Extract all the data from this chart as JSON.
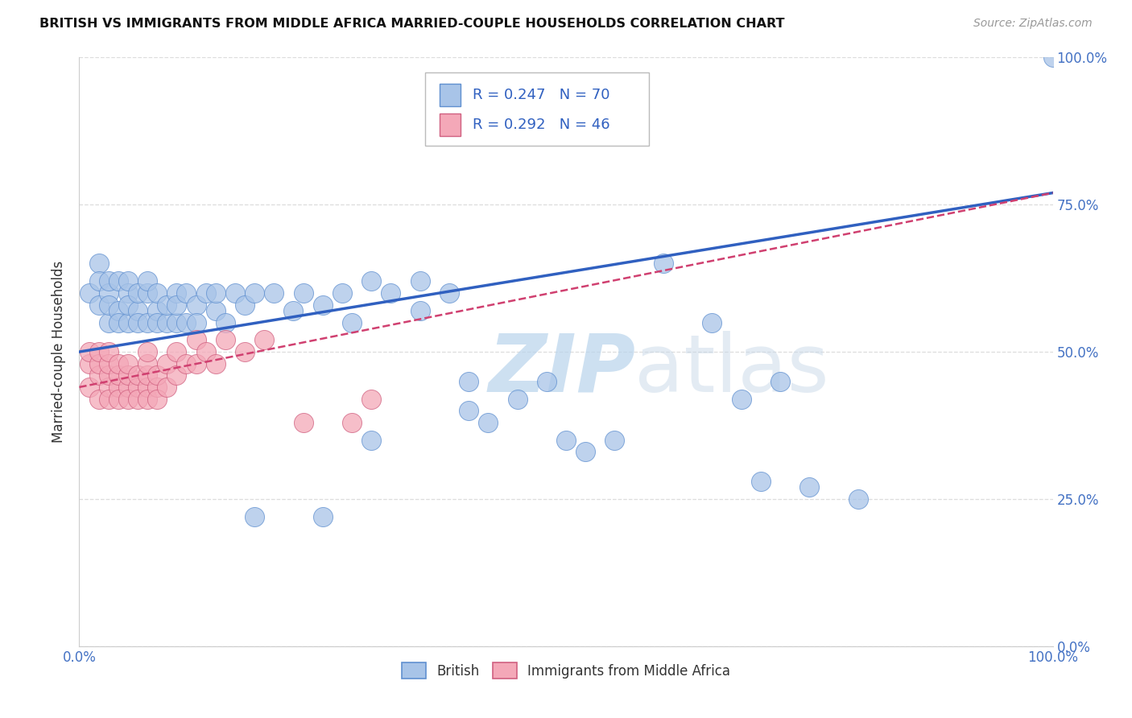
{
  "title": "BRITISH VS IMMIGRANTS FROM MIDDLE AFRICA MARRIED-COUPLE HOUSEHOLDS CORRELATION CHART",
  "source": "Source: ZipAtlas.com",
  "ylabel": "Married-couple Households",
  "xlim": [
    0,
    1
  ],
  "ylim": [
    0,
    1
  ],
  "ytick_labels": [
    "0.0%",
    "25.0%",
    "50.0%",
    "75.0%",
    "100.0%"
  ],
  "ytick_values": [
    0.0,
    0.25,
    0.5,
    0.75,
    1.0
  ],
  "blue_R": "0.247",
  "blue_N": "70",
  "pink_R": "0.292",
  "pink_N": "46",
  "blue_color": "#A8C4E8",
  "pink_color": "#F4A8B8",
  "blue_edge_color": "#6090D0",
  "pink_edge_color": "#D06080",
  "blue_line_color": "#3060C0",
  "pink_line_color": "#D04070",
  "grid_color": "#DDDDDD",
  "title_color": "#111111",
  "source_color": "#999999",
  "watermark_zip": "ZIP",
  "watermark_atlas": "atlas",
  "blue_scatter_x": [
    0.01,
    0.02,
    0.02,
    0.02,
    0.03,
    0.03,
    0.03,
    0.03,
    0.04,
    0.04,
    0.04,
    0.05,
    0.05,
    0.05,
    0.05,
    0.06,
    0.06,
    0.06,
    0.07,
    0.07,
    0.07,
    0.08,
    0.08,
    0.08,
    0.09,
    0.09,
    0.1,
    0.1,
    0.1,
    0.11,
    0.11,
    0.12,
    0.12,
    0.13,
    0.14,
    0.14,
    0.15,
    0.16,
    0.17,
    0.18,
    0.2,
    0.22,
    0.23,
    0.25,
    0.27,
    0.28,
    0.3,
    0.32,
    0.35,
    0.35,
    0.38,
    0.4,
    0.4,
    0.42,
    0.45,
    0.48,
    0.5,
    0.52,
    0.55,
    0.6,
    0.65,
    0.68,
    0.7,
    0.72,
    0.75,
    0.8,
    1.0,
    0.3,
    0.18,
    0.25
  ],
  "blue_scatter_y": [
    0.6,
    0.65,
    0.58,
    0.62,
    0.6,
    0.55,
    0.62,
    0.58,
    0.57,
    0.62,
    0.55,
    0.6,
    0.55,
    0.58,
    0.62,
    0.57,
    0.6,
    0.55,
    0.6,
    0.55,
    0.62,
    0.57,
    0.55,
    0.6,
    0.55,
    0.58,
    0.6,
    0.55,
    0.58,
    0.6,
    0.55,
    0.58,
    0.55,
    0.6,
    0.57,
    0.6,
    0.55,
    0.6,
    0.58,
    0.6,
    0.6,
    0.57,
    0.6,
    0.58,
    0.6,
    0.55,
    0.62,
    0.6,
    0.62,
    0.57,
    0.6,
    0.45,
    0.4,
    0.38,
    0.42,
    0.45,
    0.35,
    0.33,
    0.35,
    0.65,
    0.55,
    0.42,
    0.28,
    0.45,
    0.27,
    0.25,
    1.0,
    0.35,
    0.22,
    0.22
  ],
  "pink_scatter_x": [
    0.01,
    0.01,
    0.01,
    0.02,
    0.02,
    0.02,
    0.02,
    0.03,
    0.03,
    0.03,
    0.03,
    0.03,
    0.04,
    0.04,
    0.04,
    0.04,
    0.05,
    0.05,
    0.05,
    0.05,
    0.06,
    0.06,
    0.06,
    0.07,
    0.07,
    0.07,
    0.07,
    0.07,
    0.08,
    0.08,
    0.08,
    0.09,
    0.09,
    0.1,
    0.1,
    0.11,
    0.12,
    0.12,
    0.13,
    0.14,
    0.15,
    0.17,
    0.19,
    0.23,
    0.28,
    0.3
  ],
  "pink_scatter_y": [
    0.48,
    0.44,
    0.5,
    0.46,
    0.48,
    0.42,
    0.5,
    0.44,
    0.46,
    0.48,
    0.42,
    0.5,
    0.44,
    0.46,
    0.42,
    0.48,
    0.44,
    0.46,
    0.42,
    0.48,
    0.44,
    0.46,
    0.42,
    0.44,
    0.46,
    0.42,
    0.48,
    0.5,
    0.44,
    0.46,
    0.42,
    0.44,
    0.48,
    0.46,
    0.5,
    0.48,
    0.48,
    0.52,
    0.5,
    0.48,
    0.52,
    0.5,
    0.52,
    0.38,
    0.38,
    0.42
  ],
  "blue_line_x": [
    0.0,
    1.0
  ],
  "blue_line_y": [
    0.5,
    0.77
  ],
  "pink_line_x": [
    0.0,
    1.0
  ],
  "pink_line_y": [
    0.44,
    0.77
  ]
}
